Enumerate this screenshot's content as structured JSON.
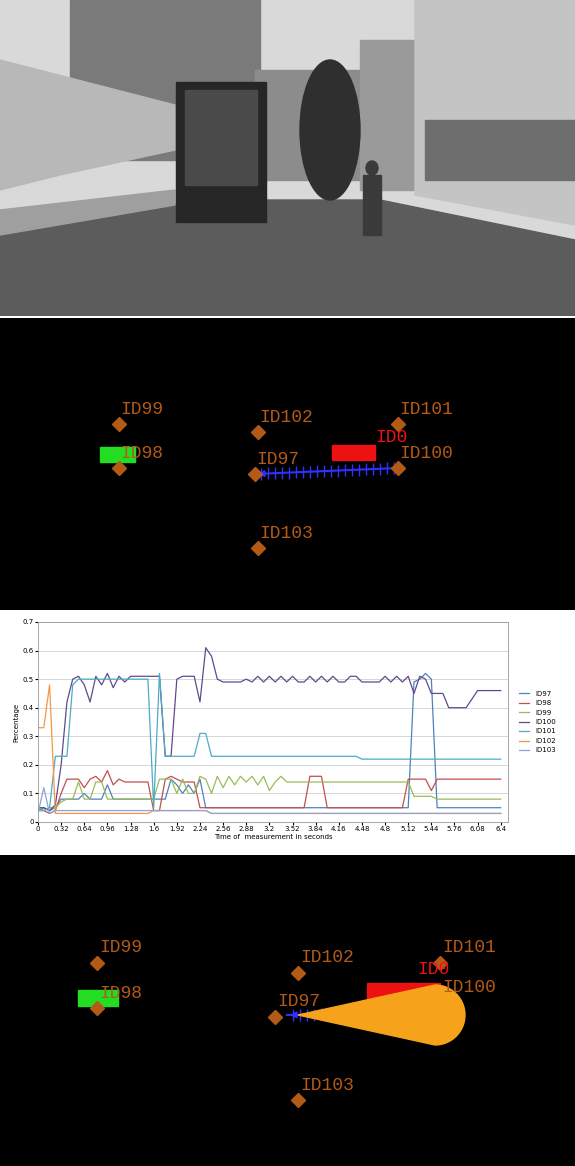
{
  "top_view_1": {
    "objects": [
      "ID99",
      "ID98",
      "ID102",
      "ID101",
      "ID100",
      "ID97",
      "ID103"
    ],
    "ego": "ID0"
  },
  "chart_data": {
    "type": "line",
    "x_label": "Time of  measurement in seconds",
    "y_label": "Percentage",
    "x": [
      0,
      0.08,
      0.16,
      0.24,
      0.32,
      0.4,
      0.48,
      0.56,
      0.64,
      0.72,
      0.8,
      0.88,
      0.96,
      1.04,
      1.12,
      1.2,
      1.28,
      1.36,
      1.44,
      1.52,
      1.6,
      1.68,
      1.76,
      1.84,
      1.92,
      2.0,
      2.08,
      2.16,
      2.24,
      2.32,
      2.4,
      2.48,
      2.56,
      2.64,
      2.72,
      2.8,
      2.88,
      2.96,
      3.04,
      3.12,
      3.2,
      3.28,
      3.36,
      3.44,
      3.52,
      3.6,
      3.68,
      3.76,
      3.84,
      3.92,
      4.0,
      4.08,
      4.16,
      4.24,
      4.32,
      4.4,
      4.48,
      4.56,
      4.64,
      4.72,
      4.8,
      4.88,
      4.96,
      5.04,
      5.12,
      5.2,
      5.28,
      5.36,
      5.44,
      5.52,
      5.6,
      5.68,
      5.76,
      5.84,
      5.92,
      6.0,
      6.08,
      6.16,
      6.24,
      6.32,
      6.4
    ],
    "xlim": [
      0,
      6.5
    ],
    "xticks": [
      0,
      0.32,
      0.64,
      0.96,
      1.28,
      1.6,
      1.92,
      2.24,
      2.56,
      2.88,
      3.2,
      3.52,
      3.84,
      4.16,
      4.48,
      4.8,
      5.12,
      5.44,
      5.76,
      6.08,
      6.4
    ],
    "ylim": [
      0,
      0.7
    ],
    "yticks": [
      0,
      0.1,
      0.2,
      0.3,
      0.4,
      0.5,
      0.6,
      0.7
    ],
    "grid": true,
    "legend": "right",
    "series": [
      {
        "name": "ID97",
        "color": "#4f81bd",
        "values": [
          0.04,
          0.05,
          0.04,
          0.05,
          0.08,
          0.08,
          0.08,
          0.08,
          0.1,
          0.08,
          0.08,
          0.08,
          0.13,
          0.08,
          0.08,
          0.08,
          0.08,
          0.08,
          0.08,
          0.08,
          0.08,
          0.08,
          0.08,
          0.15,
          0.13,
          0.1,
          0.13,
          0.1,
          0.15,
          0.05,
          0.05,
          0.05,
          0.05,
          0.05,
          0.05,
          0.05,
          0.05,
          0.05,
          0.05,
          0.05,
          0.05,
          0.05,
          0.05,
          0.05,
          0.05,
          0.05,
          0.05,
          0.05,
          0.05,
          0.05,
          0.05,
          0.05,
          0.05,
          0.05,
          0.05,
          0.05,
          0.05,
          0.05,
          0.05,
          0.05,
          0.05,
          0.05,
          0.05,
          0.05,
          0.05,
          0.49,
          0.5,
          0.52,
          0.5,
          0.05,
          0.05,
          0.05,
          0.05,
          0.05,
          0.05,
          0.05,
          0.05,
          0.05,
          0.05,
          0.05,
          0.05
        ]
      },
      {
        "name": "ID98",
        "color": "#c0504d",
        "values": [
          0.04,
          0.04,
          0.03,
          0.04,
          0.1,
          0.15,
          0.15,
          0.15,
          0.12,
          0.15,
          0.16,
          0.14,
          0.18,
          0.13,
          0.15,
          0.14,
          0.14,
          0.14,
          0.14,
          0.14,
          0.04,
          0.04,
          0.15,
          0.16,
          0.15,
          0.14,
          0.14,
          0.14,
          0.05,
          0.05,
          0.05,
          0.05,
          0.05,
          0.05,
          0.05,
          0.05,
          0.05,
          0.05,
          0.05,
          0.05,
          0.05,
          0.05,
          0.05,
          0.05,
          0.05,
          0.05,
          0.05,
          0.16,
          0.16,
          0.16,
          0.05,
          0.05,
          0.05,
          0.05,
          0.05,
          0.05,
          0.05,
          0.05,
          0.05,
          0.05,
          0.05,
          0.05,
          0.05,
          0.05,
          0.15,
          0.15,
          0.15,
          0.15,
          0.11,
          0.15,
          0.15,
          0.15,
          0.15,
          0.15,
          0.15,
          0.15,
          0.15,
          0.15,
          0.15,
          0.15,
          0.15
        ]
      },
      {
        "name": "ID99",
        "color": "#9bbb59",
        "values": [
          0.04,
          0.04,
          0.05,
          0.05,
          0.07,
          0.08,
          0.08,
          0.14,
          0.08,
          0.08,
          0.14,
          0.14,
          0.08,
          0.08,
          0.08,
          0.08,
          0.08,
          0.08,
          0.08,
          0.08,
          0.08,
          0.15,
          0.15,
          0.15,
          0.1,
          0.15,
          0.1,
          0.1,
          0.16,
          0.15,
          0.1,
          0.16,
          0.12,
          0.16,
          0.13,
          0.16,
          0.14,
          0.16,
          0.13,
          0.16,
          0.11,
          0.14,
          0.16,
          0.14,
          0.14,
          0.14,
          0.14,
          0.14,
          0.14,
          0.14,
          0.14,
          0.14,
          0.14,
          0.14,
          0.14,
          0.14,
          0.14,
          0.14,
          0.14,
          0.14,
          0.14,
          0.14,
          0.14,
          0.14,
          0.14,
          0.09,
          0.09,
          0.09,
          0.09,
          0.08,
          0.08,
          0.08,
          0.08,
          0.08,
          0.08,
          0.08,
          0.08,
          0.08,
          0.08,
          0.08,
          0.08
        ]
      },
      {
        "name": "ID100",
        "color": "#5f4b8b",
        "values": [
          0.05,
          0.05,
          0.04,
          0.06,
          0.2,
          0.42,
          0.5,
          0.51,
          0.48,
          0.42,
          0.51,
          0.48,
          0.52,
          0.47,
          0.51,
          0.49,
          0.51,
          0.51,
          0.51,
          0.51,
          0.51,
          0.51,
          0.23,
          0.23,
          0.5,
          0.51,
          0.51,
          0.51,
          0.42,
          0.61,
          0.58,
          0.5,
          0.49,
          0.49,
          0.49,
          0.49,
          0.5,
          0.49,
          0.51,
          0.49,
          0.51,
          0.49,
          0.51,
          0.49,
          0.51,
          0.49,
          0.49,
          0.51,
          0.49,
          0.51,
          0.49,
          0.51,
          0.49,
          0.49,
          0.51,
          0.51,
          0.49,
          0.49,
          0.49,
          0.49,
          0.51,
          0.49,
          0.51,
          0.49,
          0.51,
          0.45,
          0.51,
          0.5,
          0.45,
          0.45,
          0.45,
          0.4,
          0.4,
          0.4,
          0.4,
          0.43,
          0.46,
          0.46,
          0.46,
          0.46,
          0.46
        ]
      },
      {
        "name": "ID101",
        "color": "#4bacc6",
        "values": [
          0.05,
          0.04,
          0.05,
          0.23,
          0.23,
          0.23,
          0.48,
          0.5,
          0.5,
          0.5,
          0.5,
          0.5,
          0.5,
          0.5,
          0.5,
          0.5,
          0.5,
          0.5,
          0.5,
          0.5,
          0.05,
          0.52,
          0.23,
          0.23,
          0.23,
          0.23,
          0.23,
          0.23,
          0.31,
          0.31,
          0.23,
          0.23,
          0.23,
          0.23,
          0.23,
          0.23,
          0.23,
          0.23,
          0.23,
          0.23,
          0.23,
          0.23,
          0.23,
          0.23,
          0.23,
          0.23,
          0.23,
          0.23,
          0.23,
          0.23,
          0.23,
          0.23,
          0.23,
          0.23,
          0.23,
          0.23,
          0.22,
          0.22,
          0.22,
          0.22,
          0.22,
          0.22,
          0.22,
          0.22,
          0.22,
          0.22,
          0.22,
          0.22,
          0.22,
          0.22,
          0.22,
          0.22,
          0.22,
          0.22,
          0.22,
          0.22,
          0.22,
          0.22,
          0.22,
          0.22,
          0.22
        ]
      },
      {
        "name": "ID102",
        "color": "#f79646",
        "values": [
          0.33,
          0.33,
          0.48,
          0.03,
          0.03,
          0.03,
          0.03,
          0.03,
          0.03,
          0.03,
          0.03,
          0.03,
          0.03,
          0.03,
          0.03,
          0.03,
          0.03,
          0.03,
          0.03,
          0.03,
          0.04,
          0.04,
          0.04,
          0.04,
          0.04,
          0.04,
          0.04,
          0.04,
          0.04,
          0.04,
          0.03,
          0.03,
          0.03,
          0.03,
          0.03,
          0.03,
          0.03,
          0.03,
          0.03,
          0.03,
          0.03,
          0.03,
          0.03,
          0.03,
          0.03,
          0.03,
          0.03,
          0.03,
          0.03,
          0.03,
          0.03,
          0.03,
          0.03,
          0.03,
          0.03,
          0.03,
          0.03,
          0.03,
          0.03,
          0.03,
          0.03,
          0.03,
          0.03,
          0.03,
          0.03,
          0.03,
          0.03,
          0.03,
          0.03,
          0.03,
          0.03,
          0.03,
          0.03,
          0.03,
          0.03,
          0.03,
          0.03,
          0.03,
          0.03,
          0.03,
          0.03
        ]
      },
      {
        "name": "ID103",
        "color": "#8fa3d6",
        "values": [
          0.03,
          0.12,
          0.03,
          0.04,
          0.04,
          0.04,
          0.04,
          0.04,
          0.04,
          0.04,
          0.04,
          0.04,
          0.04,
          0.04,
          0.04,
          0.04,
          0.04,
          0.04,
          0.04,
          0.04,
          0.04,
          0.04,
          0.04,
          0.04,
          0.04,
          0.04,
          0.04,
          0.04,
          0.04,
          0.04,
          0.03,
          0.03,
          0.03,
          0.03,
          0.03,
          0.03,
          0.03,
          0.03,
          0.03,
          0.03,
          0.03,
          0.03,
          0.03,
          0.03,
          0.03,
          0.03,
          0.03,
          0.03,
          0.03,
          0.03,
          0.03,
          0.03,
          0.03,
          0.03,
          0.03,
          0.03,
          0.03,
          0.03,
          0.03,
          0.03,
          0.03,
          0.03,
          0.03,
          0.03,
          0.03,
          0.03,
          0.03,
          0.03,
          0.03,
          0.03,
          0.03,
          0.03,
          0.03,
          0.03,
          0.03,
          0.03,
          0.03,
          0.03,
          0.03,
          0.03,
          0.03
        ]
      }
    ]
  },
  "top_view_2": {
    "objects": [
      "ID99",
      "ID98",
      "ID102",
      "ID101",
      "ID100",
      "ID97",
      "ID103"
    ],
    "ego": "ID0"
  }
}
